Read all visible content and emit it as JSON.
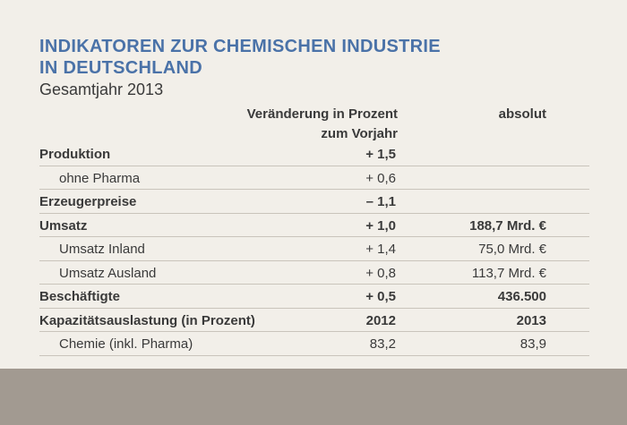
{
  "header": {
    "title_line1": "INDIKATOREN ZUR CHEMISCHEN INDUSTRIE",
    "title_line2": "IN DEUTSCHLAND",
    "subtitle": "Gesamtjahr 2013"
  },
  "columns": {
    "pct_line1": "Veränderung in Prozent",
    "pct_line2": "zum Vorjahr",
    "abs": "absolut"
  },
  "rows": [
    {
      "label": "Produktion",
      "pct": "+ 1,5",
      "abs": "",
      "bold": true
    },
    {
      "label": "ohne Pharma",
      "pct": "+ 0,6",
      "abs": "",
      "bold": false
    },
    {
      "label": "Erzeugerpreise",
      "pct": "– 1,1",
      "abs": "",
      "bold": true
    },
    {
      "label": "Umsatz",
      "pct": "+ 1,0",
      "abs": "188,7 Mrd. €",
      "bold": true
    },
    {
      "label": "Umsatz Inland",
      "pct": "+ 1,4",
      "abs": "75,0 Mrd. €",
      "bold": false
    },
    {
      "label": "Umsatz Ausland",
      "pct": "+ 0,8",
      "abs": "113,7 Mrd. €",
      "bold": false
    },
    {
      "label": "Beschäftigte",
      "pct": "+ 0,5",
      "abs": "436.500",
      "bold": true
    },
    {
      "label": "Kapazitätsauslastung (in Prozent)",
      "pct": "2012",
      "abs": "2013",
      "bold": true
    },
    {
      "label": "Chemie (inkl. Pharma)",
      "pct": "83,2",
      "abs": "83,9",
      "bold": false
    }
  ]
}
